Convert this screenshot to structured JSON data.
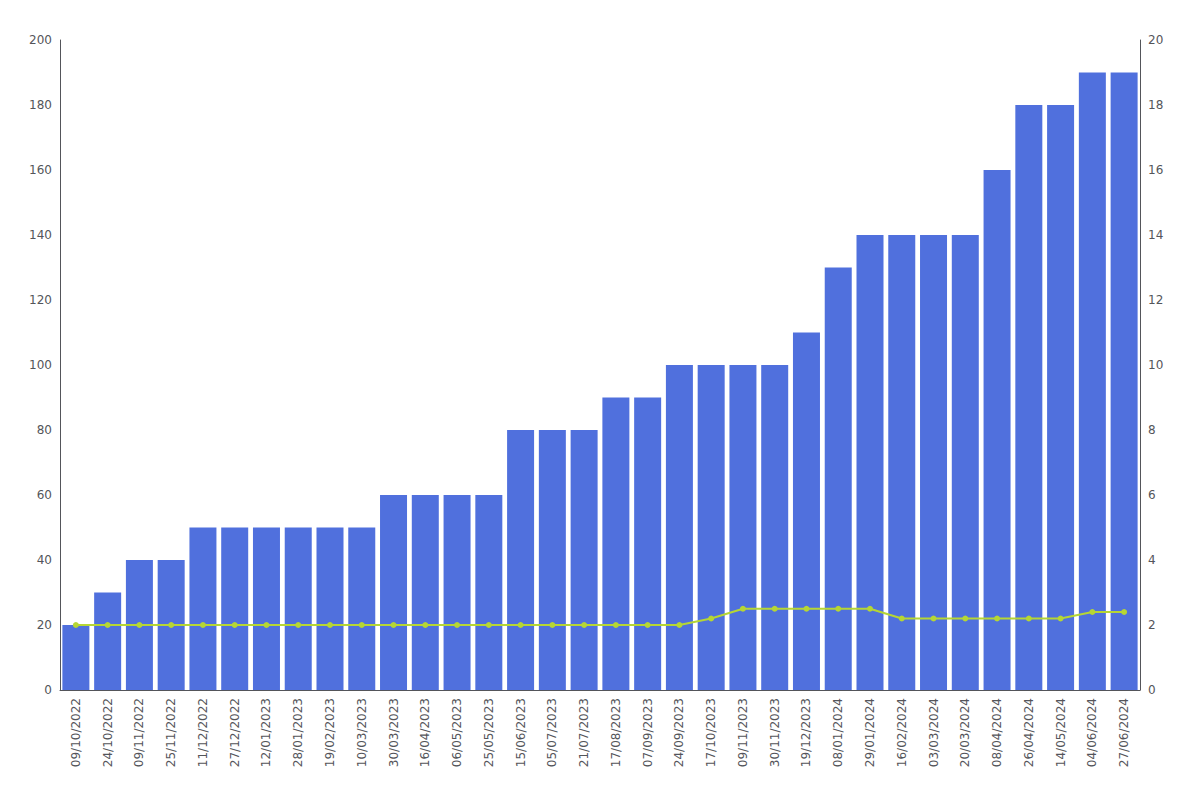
{
  "chart_data": {
    "type": "bar",
    "categories": [
      "09/10/2022",
      "24/10/2022",
      "09/11/2022",
      "25/11/2022",
      "11/12/2022",
      "27/12/2022",
      "12/01/2023",
      "28/01/2023",
      "19/02/2023",
      "10/03/2023",
      "30/03/2023",
      "16/04/2023",
      "06/05/2023",
      "25/05/2023",
      "15/06/2023",
      "05/07/2023",
      "21/07/2023",
      "17/08/2023",
      "07/09/2023",
      "24/09/2023",
      "17/10/2023",
      "09/11/2023",
      "30/11/2023",
      "19/12/2023",
      "08/01/2024",
      "29/01/2024",
      "16/02/2024",
      "03/03/2024",
      "20/03/2024",
      "08/04/2024",
      "26/04/2024",
      "14/05/2024",
      "04/06/2024",
      "27/06/2024"
    ],
    "series": [
      {
        "type": "bar",
        "values": [
          20,
          30,
          40,
          40,
          50,
          50,
          50,
          50,
          50,
          50,
          60,
          60,
          60,
          60,
          80,
          80,
          80,
          90,
          90,
          100,
          100,
          100,
          100,
          110,
          130,
          140,
          140,
          140,
          140,
          160,
          180,
          180,
          190,
          190
        ]
      },
      {
        "type": "line",
        "axis": "y2",
        "marker": "circle",
        "values": [
          2.0,
          2.0,
          2.0,
          2.0,
          2.0,
          2.0,
          2.0,
          2.0,
          2.0,
          2.0,
          2.0,
          2.0,
          2.0,
          2.0,
          2.0,
          2.0,
          2.0,
          2.0,
          2.0,
          2.0,
          2.2,
          2.5,
          2.5,
          2.5,
          2.5,
          2.5,
          2.2,
          2.2,
          2.2,
          2.2,
          2.2,
          2.2,
          2.4,
          2.4
        ]
      }
    ],
    "ylim": [
      0,
      200
    ],
    "yticks": [
      0,
      20,
      40,
      60,
      80,
      100,
      120,
      140,
      160,
      180,
      200
    ],
    "y2lim": [
      0,
      20
    ],
    "y2ticks": [
      0,
      2,
      4,
      6,
      8,
      10,
      12,
      14,
      16,
      18,
      20
    ],
    "grid": false
  }
}
